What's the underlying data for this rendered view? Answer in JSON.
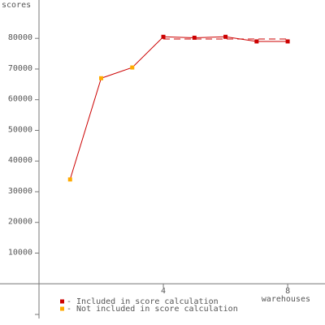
{
  "chart_data": {
    "type": "line",
    "y_label": "scores",
    "x_label": "warehouses",
    "x": [
      1,
      2,
      3,
      4,
      5,
      6,
      7,
      8
    ],
    "series": [
      {
        "name": "- Included in score calculation",
        "color": "#cc0000",
        "values": [
          null,
          null,
          null,
          80500,
          80200,
          80500,
          79000,
          79000
        ]
      },
      {
        "name": "- Not included in score calculation",
        "color": "#ffaa00",
        "values": [
          34000,
          67000,
          70500,
          null,
          null,
          null,
          null,
          null
        ]
      }
    ],
    "line_color": "#cc0000",
    "mean_line": 79800,
    "xlim": [
      0,
      9.2
    ],
    "xticks": [
      4,
      8
    ],
    "ylim": [
      -10000,
      92500
    ],
    "yticks": [
      10000,
      20000,
      30000,
      40000,
      50000,
      60000,
      70000,
      80000
    ]
  }
}
